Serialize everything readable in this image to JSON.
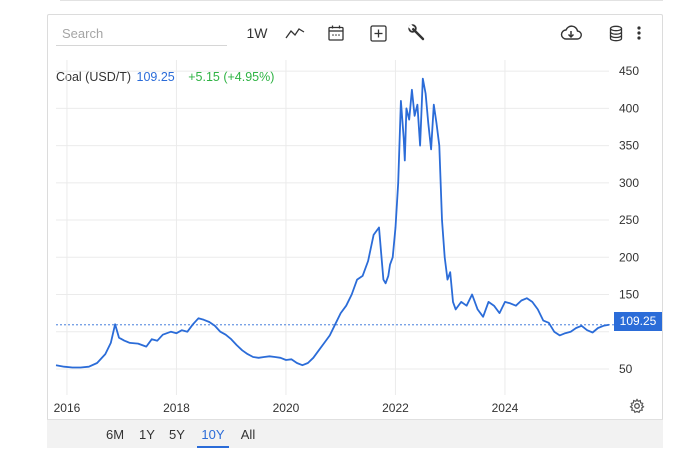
{
  "toolbar": {
    "search_placeholder": "Search",
    "interval_label": "1W",
    "icons": [
      "line-chart-icon",
      "calendar-icon",
      "add-icon",
      "wrench-icon",
      "cloud-download-icon",
      "database-icon",
      "more-vertical-icon"
    ]
  },
  "legend": {
    "name": "Coal (USD/T)",
    "price": "109.25",
    "change": "+5.15 (+4.95%)"
  },
  "last_price_tag": "109.25",
  "range_buttons": [
    {
      "label": "6M",
      "active": false
    },
    {
      "label": "1Y",
      "active": false
    },
    {
      "label": "5Y",
      "active": false
    },
    {
      "label": "10Y",
      "active": true
    },
    {
      "label": "All",
      "active": false
    }
  ],
  "colors": {
    "line": "#2b6cd8",
    "positive": "#2fb344",
    "grid": "#ebebeb"
  },
  "chart_data": {
    "type": "line",
    "title": "Coal (USD/T)",
    "xlabel": "",
    "ylabel": "",
    "x_ticks": [
      "2016",
      "2018",
      "2020",
      "2022",
      "2024"
    ],
    "y_ticks": [
      50,
      100,
      150,
      200,
      250,
      300,
      350,
      400,
      450
    ],
    "y_tick_labels": [
      "50",
      "",
      "150",
      "200",
      "250",
      "300",
      "350",
      "400",
      "450"
    ],
    "ylim": [
      15,
      465
    ],
    "xlim": [
      2015.8,
      2025.9
    ],
    "grid": true,
    "last_value": 109.25,
    "series": [
      {
        "x": [
          2015.8,
          2015.95,
          2016.1,
          2016.25,
          2016.4,
          2016.55,
          2016.7,
          2016.8,
          2016.88,
          2016.95,
          2017.05,
          2017.15,
          2017.3,
          2017.45,
          2017.55,
          2017.65,
          2017.75,
          2017.9,
          2018.0,
          2018.1,
          2018.2,
          2018.3,
          2018.4,
          2018.5,
          2018.6,
          2018.7,
          2018.8,
          2018.9,
          2019.0,
          2019.1,
          2019.2,
          2019.3,
          2019.4,
          2019.5,
          2019.6,
          2019.7,
          2019.8,
          2019.9,
          2020.0,
          2020.1,
          2020.2,
          2020.3,
          2020.4,
          2020.5,
          2020.6,
          2020.7,
          2020.8,
          2020.9,
          2021.0,
          2021.1,
          2021.2,
          2021.3,
          2021.4,
          2021.5,
          2021.6,
          2021.7,
          2021.78,
          2021.82,
          2021.87,
          2021.9,
          2021.95,
          2022.0,
          2022.05,
          2022.1,
          2022.15,
          2022.17,
          2022.2,
          2022.25,
          2022.3,
          2022.35,
          2022.4,
          2022.45,
          2022.5,
          2022.55,
          2022.6,
          2022.65,
          2022.7,
          2022.75,
          2022.8,
          2022.85,
          2022.9,
          2022.95,
          2023.0,
          2023.05,
          2023.1,
          2023.2,
          2023.3,
          2023.4,
          2023.5,
          2023.6,
          2023.7,
          2023.8,
          2023.9,
          2024.0,
          2024.1,
          2024.2,
          2024.3,
          2024.4,
          2024.5,
          2024.6,
          2024.7,
          2024.8,
          2024.9,
          2025.0,
          2025.1,
          2025.2,
          2025.3,
          2025.4,
          2025.5,
          2025.6,
          2025.7,
          2025.8,
          2025.9
        ],
        "y": [
          55,
          53,
          52,
          52,
          53,
          58,
          70,
          85,
          110,
          92,
          88,
          85,
          84,
          80,
          90,
          88,
          96,
          100,
          98,
          102,
          100,
          110,
          118,
          116,
          113,
          108,
          100,
          96,
          90,
          82,
          75,
          70,
          66,
          65,
          66,
          67,
          66,
          65,
          62,
          63,
          58,
          55,
          58,
          65,
          75,
          85,
          95,
          110,
          125,
          135,
          150,
          170,
          175,
          195,
          230,
          240,
          170,
          165,
          175,
          190,
          200,
          240,
          300,
          410,
          360,
          330,
          400,
          385,
          425,
          390,
          405,
          350,
          440,
          420,
          380,
          345,
          405,
          380,
          350,
          250,
          200,
          170,
          180,
          140,
          130,
          140,
          135,
          150,
          130,
          120,
          140,
          135,
          125,
          140,
          138,
          135,
          142,
          145,
          140,
          130,
          115,
          112,
          100,
          95,
          98,
          100,
          105,
          108,
          102,
          99,
          105,
          108,
          109.25
        ]
      }
    ]
  }
}
